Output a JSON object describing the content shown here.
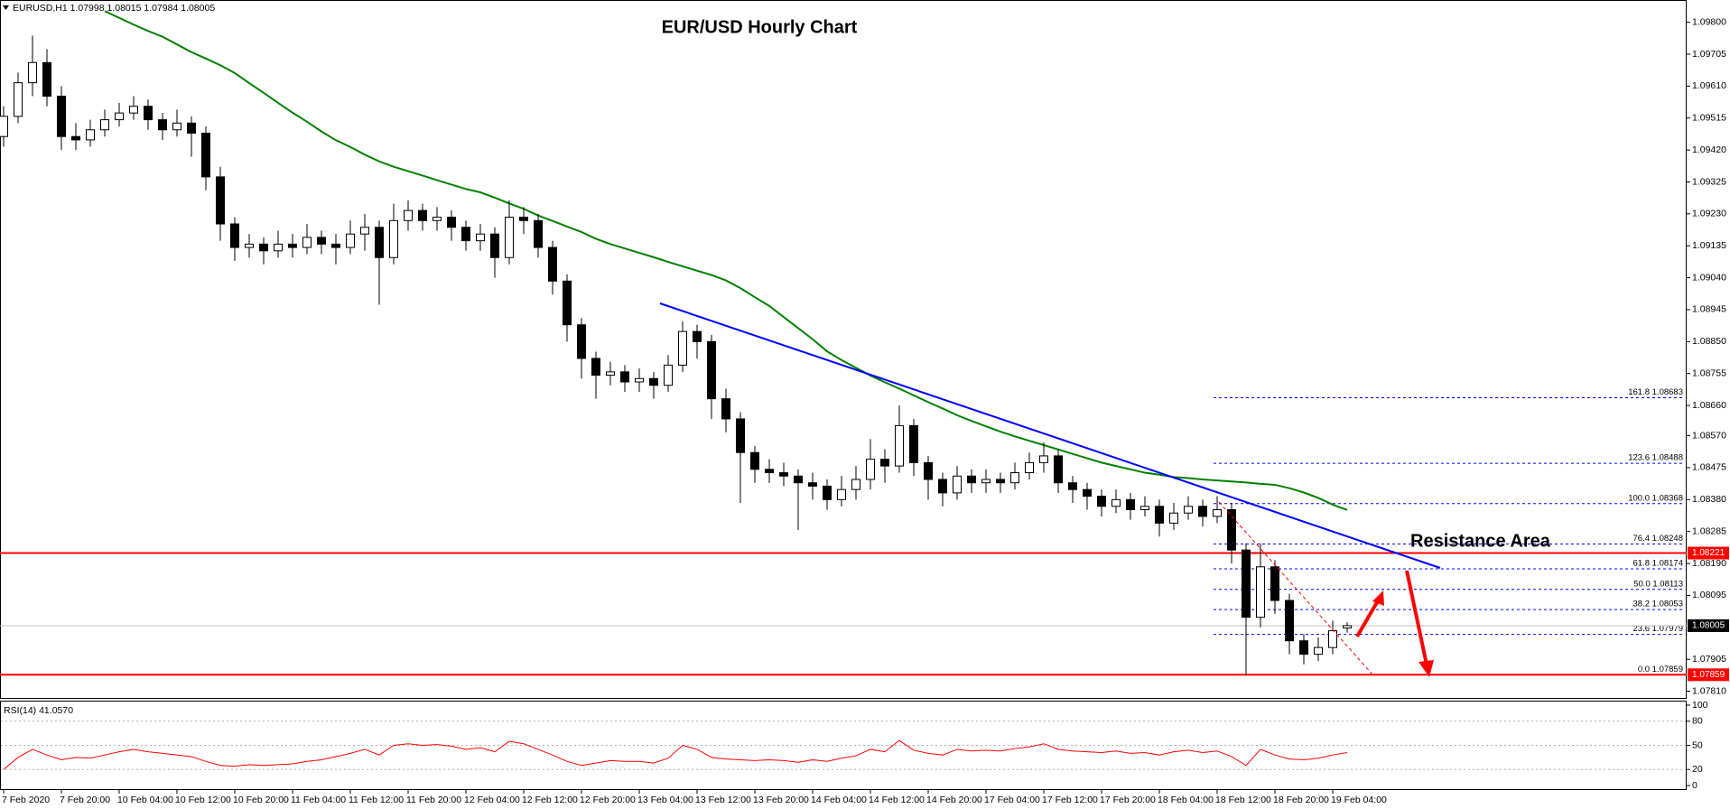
{
  "chart_data": [
    {
      "type": "candlestick",
      "header": "EURUSD,H1 1.07998 1.08015 1.07984 1.08005",
      "title": "EUR/USD Hourly Chart",
      "annotation": "Resistance Area",
      "annotation_color": "#ff0000",
      "categories": [
        "7 Feb 2020",
        null,
        null,
        null,
        "7 Feb 20:00",
        null,
        null,
        null,
        "10 Feb 04:00",
        null,
        null,
        null,
        "10 Feb 12:00",
        null,
        null,
        null,
        "10 Feb 20:00",
        null,
        null,
        null,
        "11 Feb 04:00",
        null,
        null,
        null,
        "11 Feb 12:00",
        null,
        null,
        null,
        "11 Feb 20:00",
        null,
        null,
        null,
        "12 Feb 04:00",
        null,
        null,
        null,
        "12 Feb 12:00",
        null,
        null,
        null,
        "12 Feb 20:00",
        null,
        null,
        null,
        "13 Feb 04:00",
        null,
        null,
        null,
        "13 Feb 12:00",
        null,
        null,
        null,
        "13 Feb 20:00",
        null,
        null,
        null,
        "14 Feb 04:00",
        null,
        null,
        null,
        "14 Feb 12:00",
        null,
        null,
        null,
        "14 Feb 20:00",
        null,
        null,
        null,
        "17 Feb 04:00",
        null,
        null,
        null,
        "17 Feb 12:00",
        null,
        null,
        null,
        "17 Feb 20:00",
        null,
        null,
        null,
        "18 Feb 04:00",
        null,
        null,
        null,
        "18 Feb 12:00",
        null,
        null,
        null,
        "18 Feb 20:00",
        null,
        null,
        null,
        "19 Feb 04:00",
        null
      ],
      "open": [
        1.0946,
        1.0952,
        1.0962,
        1.0968,
        1.0958,
        1.0946,
        1.0945,
        1.0948,
        1.0951,
        1.0953,
        1.0955,
        1.0951,
        1.0948,
        1.095,
        1.0947,
        1.0934,
        1.092,
        1.0913,
        1.0914,
        1.0912,
        1.0914,
        1.0913,
        1.0916,
        1.0914,
        1.0913,
        1.0917,
        1.0919,
        1.091,
        1.0921,
        1.0924,
        1.0921,
        1.0922,
        1.0919,
        1.0915,
        1.0917,
        1.091,
        1.0922,
        1.0921,
        1.0913,
        1.0903,
        1.089,
        1.088,
        1.0875,
        1.0876,
        1.0873,
        1.0874,
        1.0872,
        1.0878,
        1.0888,
        1.0885,
        1.0868,
        1.0862,
        1.0852,
        1.0847,
        1.0846,
        1.0845,
        1.0843,
        1.0842,
        1.0838,
        1.0841,
        1.0844,
        1.085,
        1.0848,
        1.086,
        1.0849,
        1.0844,
        1.084,
        1.0845,
        1.0843,
        1.0844,
        1.0843,
        1.0846,
        1.0849,
        1.0851,
        1.0843,
        1.0841,
        1.0839,
        1.0836,
        1.0838,
        1.0835,
        1.0836,
        1.0831,
        1.0834,
        1.0836,
        1.0833,
        1.0835,
        1.0823,
        1.0803,
        1.0818,
        1.0808,
        1.0796,
        1.0792,
        1.0794,
        1.07998
      ],
      "high": [
        1.0955,
        1.0965,
        1.0976,
        1.0972,
        1.0961,
        1.095,
        1.0951,
        1.0954,
        1.0956,
        1.0958,
        1.0957,
        1.0953,
        1.0954,
        1.0952,
        1.0949,
        1.0937,
        1.0922,
        1.0917,
        1.0916,
        1.0918,
        1.0917,
        1.092,
        1.0918,
        1.0917,
        1.0921,
        1.0923,
        1.0921,
        1.0926,
        1.0927,
        1.0926,
        1.0925,
        1.0924,
        1.0921,
        1.092,
        1.0919,
        1.0927,
        1.0925,
        1.0923,
        1.0915,
        1.0905,
        1.0892,
        1.0882,
        1.0879,
        1.0878,
        1.0877,
        1.0876,
        1.0881,
        1.0891,
        1.089,
        1.0887,
        1.0871,
        1.0864,
        1.0854,
        1.085,
        1.0849,
        1.0847,
        1.0846,
        1.0844,
        1.0845,
        1.0848,
        1.0856,
        1.0853,
        1.0866,
        1.0862,
        1.0851,
        1.0846,
        1.0848,
        1.0847,
        1.0847,
        1.0846,
        1.0849,
        1.0852,
        1.0855,
        1.0853,
        1.0845,
        1.0843,
        1.0841,
        1.0841,
        1.084,
        1.0839,
        1.0838,
        1.0837,
        1.0839,
        1.0838,
        1.0839,
        1.0837,
        1.0825,
        1.0825,
        1.082,
        1.081,
        1.0798,
        1.0797,
        1.0802,
        1.08015
      ],
      "low": [
        1.0943,
        1.095,
        1.0958,
        1.0955,
        1.0942,
        1.0942,
        1.0943,
        1.0946,
        1.0949,
        1.0951,
        1.0948,
        1.0945,
        1.0946,
        1.094,
        1.093,
        1.0915,
        1.0909,
        1.091,
        1.0908,
        1.091,
        1.091,
        1.0911,
        1.0911,
        1.0908,
        1.0911,
        1.0912,
        1.0896,
        1.0908,
        1.0918,
        1.0918,
        1.0918,
        1.0915,
        1.0912,
        1.0912,
        1.0904,
        1.0908,
        1.0917,
        1.091,
        1.0899,
        1.0885,
        1.0874,
        1.0868,
        1.0872,
        1.087,
        1.087,
        1.0868,
        1.087,
        1.0876,
        1.088,
        1.0862,
        1.0858,
        1.0837,
        1.0843,
        1.0843,
        1.0842,
        1.0829,
        1.0838,
        1.0835,
        1.0836,
        1.0838,
        1.0841,
        1.0843,
        1.0846,
        1.0845,
        1.0838,
        1.0836,
        1.0838,
        1.084,
        1.084,
        1.084,
        1.0841,
        1.0844,
        1.0846,
        1.084,
        1.0837,
        1.0835,
        1.0833,
        1.0834,
        1.0832,
        1.0833,
        1.0827,
        1.0829,
        1.0832,
        1.083,
        1.0831,
        1.0819,
        1.07856,
        1.08,
        1.0804,
        1.0792,
        1.0789,
        1.079,
        1.0792,
        1.07984
      ],
      "close": [
        1.0952,
        1.0962,
        1.0968,
        1.0958,
        1.0946,
        1.0945,
        1.0948,
        1.0951,
        1.0953,
        1.0955,
        1.0951,
        1.0948,
        1.095,
        1.0947,
        1.0934,
        1.092,
        1.0913,
        1.0914,
        1.0912,
        1.0914,
        1.0913,
        1.0916,
        1.0914,
        1.0913,
        1.0917,
        1.0919,
        1.091,
        1.0921,
        1.0924,
        1.0921,
        1.0922,
        1.0919,
        1.0915,
        1.0917,
        1.091,
        1.0922,
        1.0921,
        1.0913,
        1.0903,
        1.089,
        1.088,
        1.0875,
        1.0876,
        1.0873,
        1.0874,
        1.0872,
        1.0878,
        1.0888,
        1.0885,
        1.0868,
        1.0862,
        1.0852,
        1.0847,
        1.0846,
        1.0845,
        1.0843,
        1.0842,
        1.0838,
        1.0841,
        1.0844,
        1.085,
        1.0848,
        1.086,
        1.0849,
        1.0844,
        1.084,
        1.0845,
        1.0843,
        1.0844,
        1.0843,
        1.0846,
        1.0849,
        1.0851,
        1.0843,
        1.0841,
        1.0839,
        1.0836,
        1.0838,
        1.0835,
        1.0836,
        1.0831,
        1.0834,
        1.0836,
        1.0833,
        1.0835,
        1.0823,
        1.0803,
        1.0818,
        1.0808,
        1.0796,
        1.0792,
        1.0794,
        1.0799,
        1.08005
      ],
      "bull_color": "#ffffff",
      "bear_color": "#000000",
      "wick_color": "#000000",
      "ma": {
        "color": "#008000",
        "values": [
          null,
          null,
          null,
          null,
          null,
          null,
          null,
          1.09833,
          1.09813,
          1.09793,
          1.09774,
          1.09757,
          1.09734,
          1.09711,
          1.09692,
          1.09672,
          1.09649,
          1.09619,
          1.0959,
          1.0956,
          1.09531,
          1.09504,
          1.09475,
          1.09449,
          1.09429,
          1.09406,
          1.09386,
          1.0937,
          1.09357,
          1.09344,
          1.0933,
          1.09317,
          1.09304,
          1.09294,
          1.09278,
          1.09261,
          1.09245,
          1.09225,
          1.09209,
          1.09192,
          1.09176,
          1.09156,
          1.0914,
          1.09127,
          1.09114,
          1.09101,
          1.09087,
          1.09074,
          1.09061,
          1.09048,
          1.09032,
          1.09009,
          1.08982,
          1.08956,
          1.08923,
          1.0889,
          1.08857,
          1.08821,
          1.08795,
          1.08772,
          1.08749,
          1.08729,
          1.0871,
          1.0869,
          1.0867,
          1.08651,
          1.08631,
          1.08614,
          1.08598,
          1.08582,
          1.08568,
          1.08555,
          1.08542,
          1.08529,
          1.08516,
          1.08503,
          1.0849,
          1.0848,
          1.0847,
          1.0846,
          1.08454,
          1.08447,
          1.08444,
          1.0844,
          1.08437,
          1.08434,
          1.08431,
          1.08427,
          1.08424,
          1.08414,
          1.08401,
          1.08385,
          1.08365,
          1.08349
        ]
      },
      "ylim": [
        1.0779,
        1.0985
      ],
      "yticks": [
        {
          "value": 1.098,
          "label": "1.09800"
        },
        {
          "value": 1.09705,
          "label": "1.09705"
        },
        {
          "value": 1.0961,
          "label": "1.09610"
        },
        {
          "value": 1.09515,
          "label": "1.09515"
        },
        {
          "value": 1.0942,
          "label": "1.09420"
        },
        {
          "value": 1.09325,
          "label": "1.09325"
        },
        {
          "value": 1.0923,
          "label": "1.09230"
        },
        {
          "value": 1.09135,
          "label": "1.09135"
        },
        {
          "value": 1.0904,
          "label": "1.09040"
        },
        {
          "value": 1.08945,
          "label": "1.08945"
        },
        {
          "value": 1.0885,
          "label": "1.08850"
        },
        {
          "value": 1.08755,
          "label": "1.08755"
        },
        {
          "value": 1.0866,
          "label": "1.08660"
        },
        {
          "value": 1.0857,
          "label": "1.08570"
        },
        {
          "value": 1.08475,
          "label": "1.08475"
        },
        {
          "value": 1.0838,
          "label": "1.08380"
        },
        {
          "value": 1.08285,
          "label": "1.08285"
        },
        {
          "value": 1.0819,
          "label": "1.08190"
        },
        {
          "value": 1.08095,
          "label": "1.08095"
        },
        {
          "value": 1.07905,
          "label": "1.07905"
        },
        {
          "value": 1.0781,
          "label": "1.07810"
        }
      ],
      "levels": [
        {
          "value": 1.08221,
          "label": "1.08221",
          "color": "#ff0000",
          "box": "#ff0000",
          "width": 2
        },
        {
          "value": 1.08005,
          "label": "1.08005",
          "color": "#c0c0c0",
          "box": "#000000",
          "width": 1
        },
        {
          "value": 1.07859,
          "label": "1.07859",
          "color": "#ff0000",
          "box": "#ff0000",
          "width": 2
        }
      ],
      "fib": {
        "color": "#0000ff",
        "text_color": "#1a1a8c",
        "levels": [
          {
            "value": 1.08683,
            "label": "161.8 1.08683"
          },
          {
            "value": 1.08488,
            "label": "123.6 1.08488"
          },
          {
            "value": 1.08368,
            "label": "100.0 1.08368"
          },
          {
            "value": 1.08248,
            "label": "76.4 1.08248"
          },
          {
            "value": 1.08174,
            "label": "61.8 1.08174"
          },
          {
            "value": 1.08113,
            "label": "50.0 1.08113"
          },
          {
            "value": 1.08053,
            "label": "38.2 1.08053"
          },
          {
            "value": 1.07979,
            "label": "23.6 1.07979"
          },
          {
            "value": 1.07859,
            "label": "0.0 1.07859"
          }
        ]
      }
    },
    {
      "type": "line",
      "label": "RSI(14) 41.0570",
      "color": "#ff0000",
      "values": [
        20,
        35,
        45,
        38,
        32,
        35,
        34,
        38,
        42,
        45,
        42,
        40,
        38,
        36,
        30,
        25,
        24,
        26,
        25,
        26,
        27,
        30,
        32,
        36,
        40,
        45,
        38,
        50,
        52,
        50,
        51,
        49,
        45,
        47,
        42,
        55,
        52,
        45,
        38,
        30,
        25,
        28,
        31,
        30,
        30,
        28,
        34,
        50,
        45,
        35,
        33,
        32,
        31,
        32,
        31,
        29,
        32,
        30,
        34,
        37,
        45,
        42,
        56,
        44,
        40,
        38,
        45,
        43,
        44,
        43,
        46,
        48,
        52,
        45,
        43,
        42,
        41,
        43,
        40,
        41,
        38,
        42,
        44,
        41,
        43,
        36,
        25,
        45,
        38,
        33,
        32,
        34,
        38,
        41.057
      ],
      "ylim": [
        0,
        100
      ],
      "yticks": [
        100,
        80,
        50,
        20,
        0
      ],
      "grid": true
    }
  ]
}
